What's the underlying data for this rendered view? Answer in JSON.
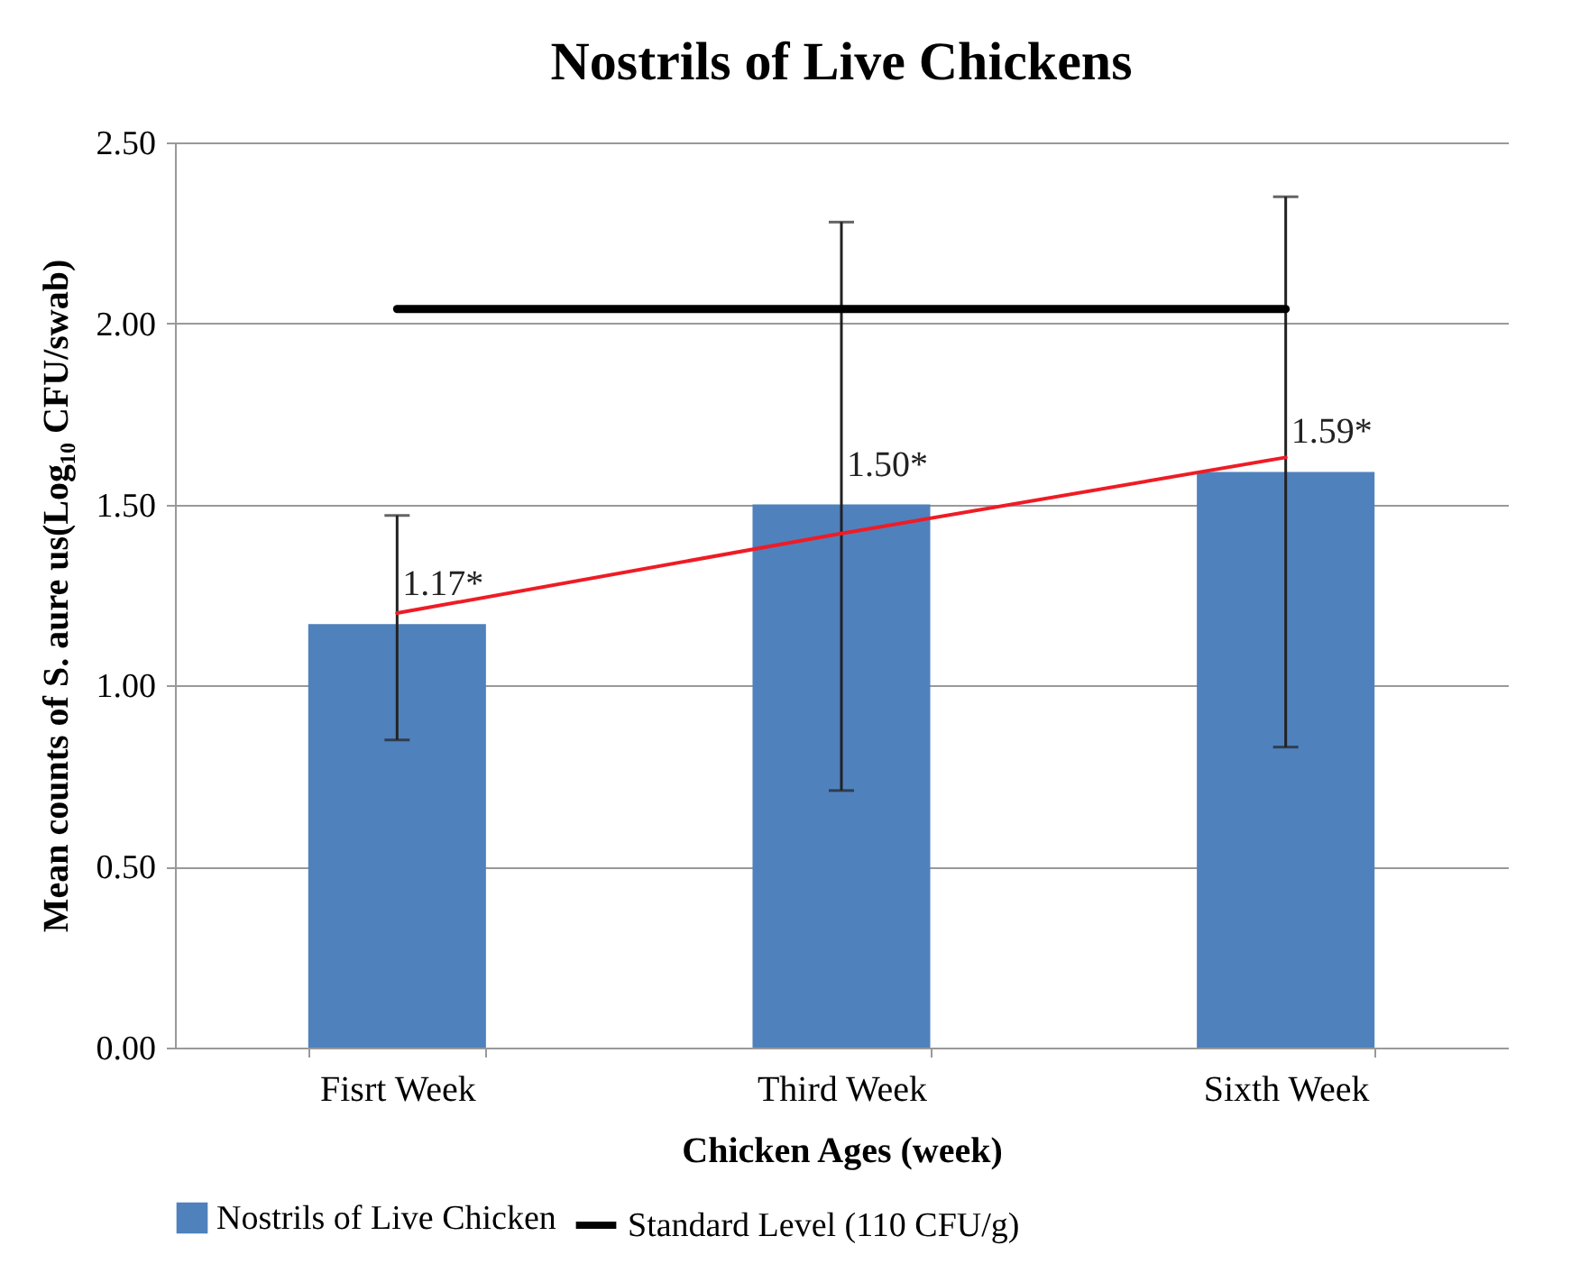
{
  "chart_data": {
    "type": "bar",
    "title": "Nostrils of Live Chickens",
    "xlabel": "Chicken Ages (week)",
    "ylabel": "Mean counts of S. aure us(Log₁₀ CFU/swab)",
    "categories": [
      "Fisrt Week",
      "Third Week",
      "Sixth Week"
    ],
    "series": [
      {
        "name": "Nostrils of Live Chicken",
        "color": "#4f81bd",
        "values": [
          1.17,
          1.5,
          1.59
        ],
        "errors": [
          [
            0.85,
            1.47
          ],
          [
            0.71,
            2.28
          ],
          [
            0.83,
            2.35
          ]
        ],
        "value_labels": [
          "1.17*",
          "1.50*",
          "1.59*"
        ]
      },
      {
        "type": "line",
        "name": "Standard Level (110 CFU/g)",
        "color": "#000000",
        "values": [
          2.04,
          2.04,
          2.04
        ]
      },
      {
        "type": "line",
        "color": "#ee1c25",
        "values": [
          1.2,
          1.42,
          1.63
        ]
      }
    ],
    "ylim": [
      0,
      2.5
    ],
    "yticks": [
      {
        "value": 0,
        "label": "0.00"
      },
      {
        "value": 0.5,
        "label": "0.50"
      },
      {
        "value": 1,
        "label": "1.00"
      },
      {
        "value": 1.5,
        "label": "1.50"
      },
      {
        "value": 2,
        "label": "2.00"
      },
      {
        "value": 2.5,
        "label": "2.50"
      }
    ],
    "grid": "y",
    "legend": "bottom"
  }
}
